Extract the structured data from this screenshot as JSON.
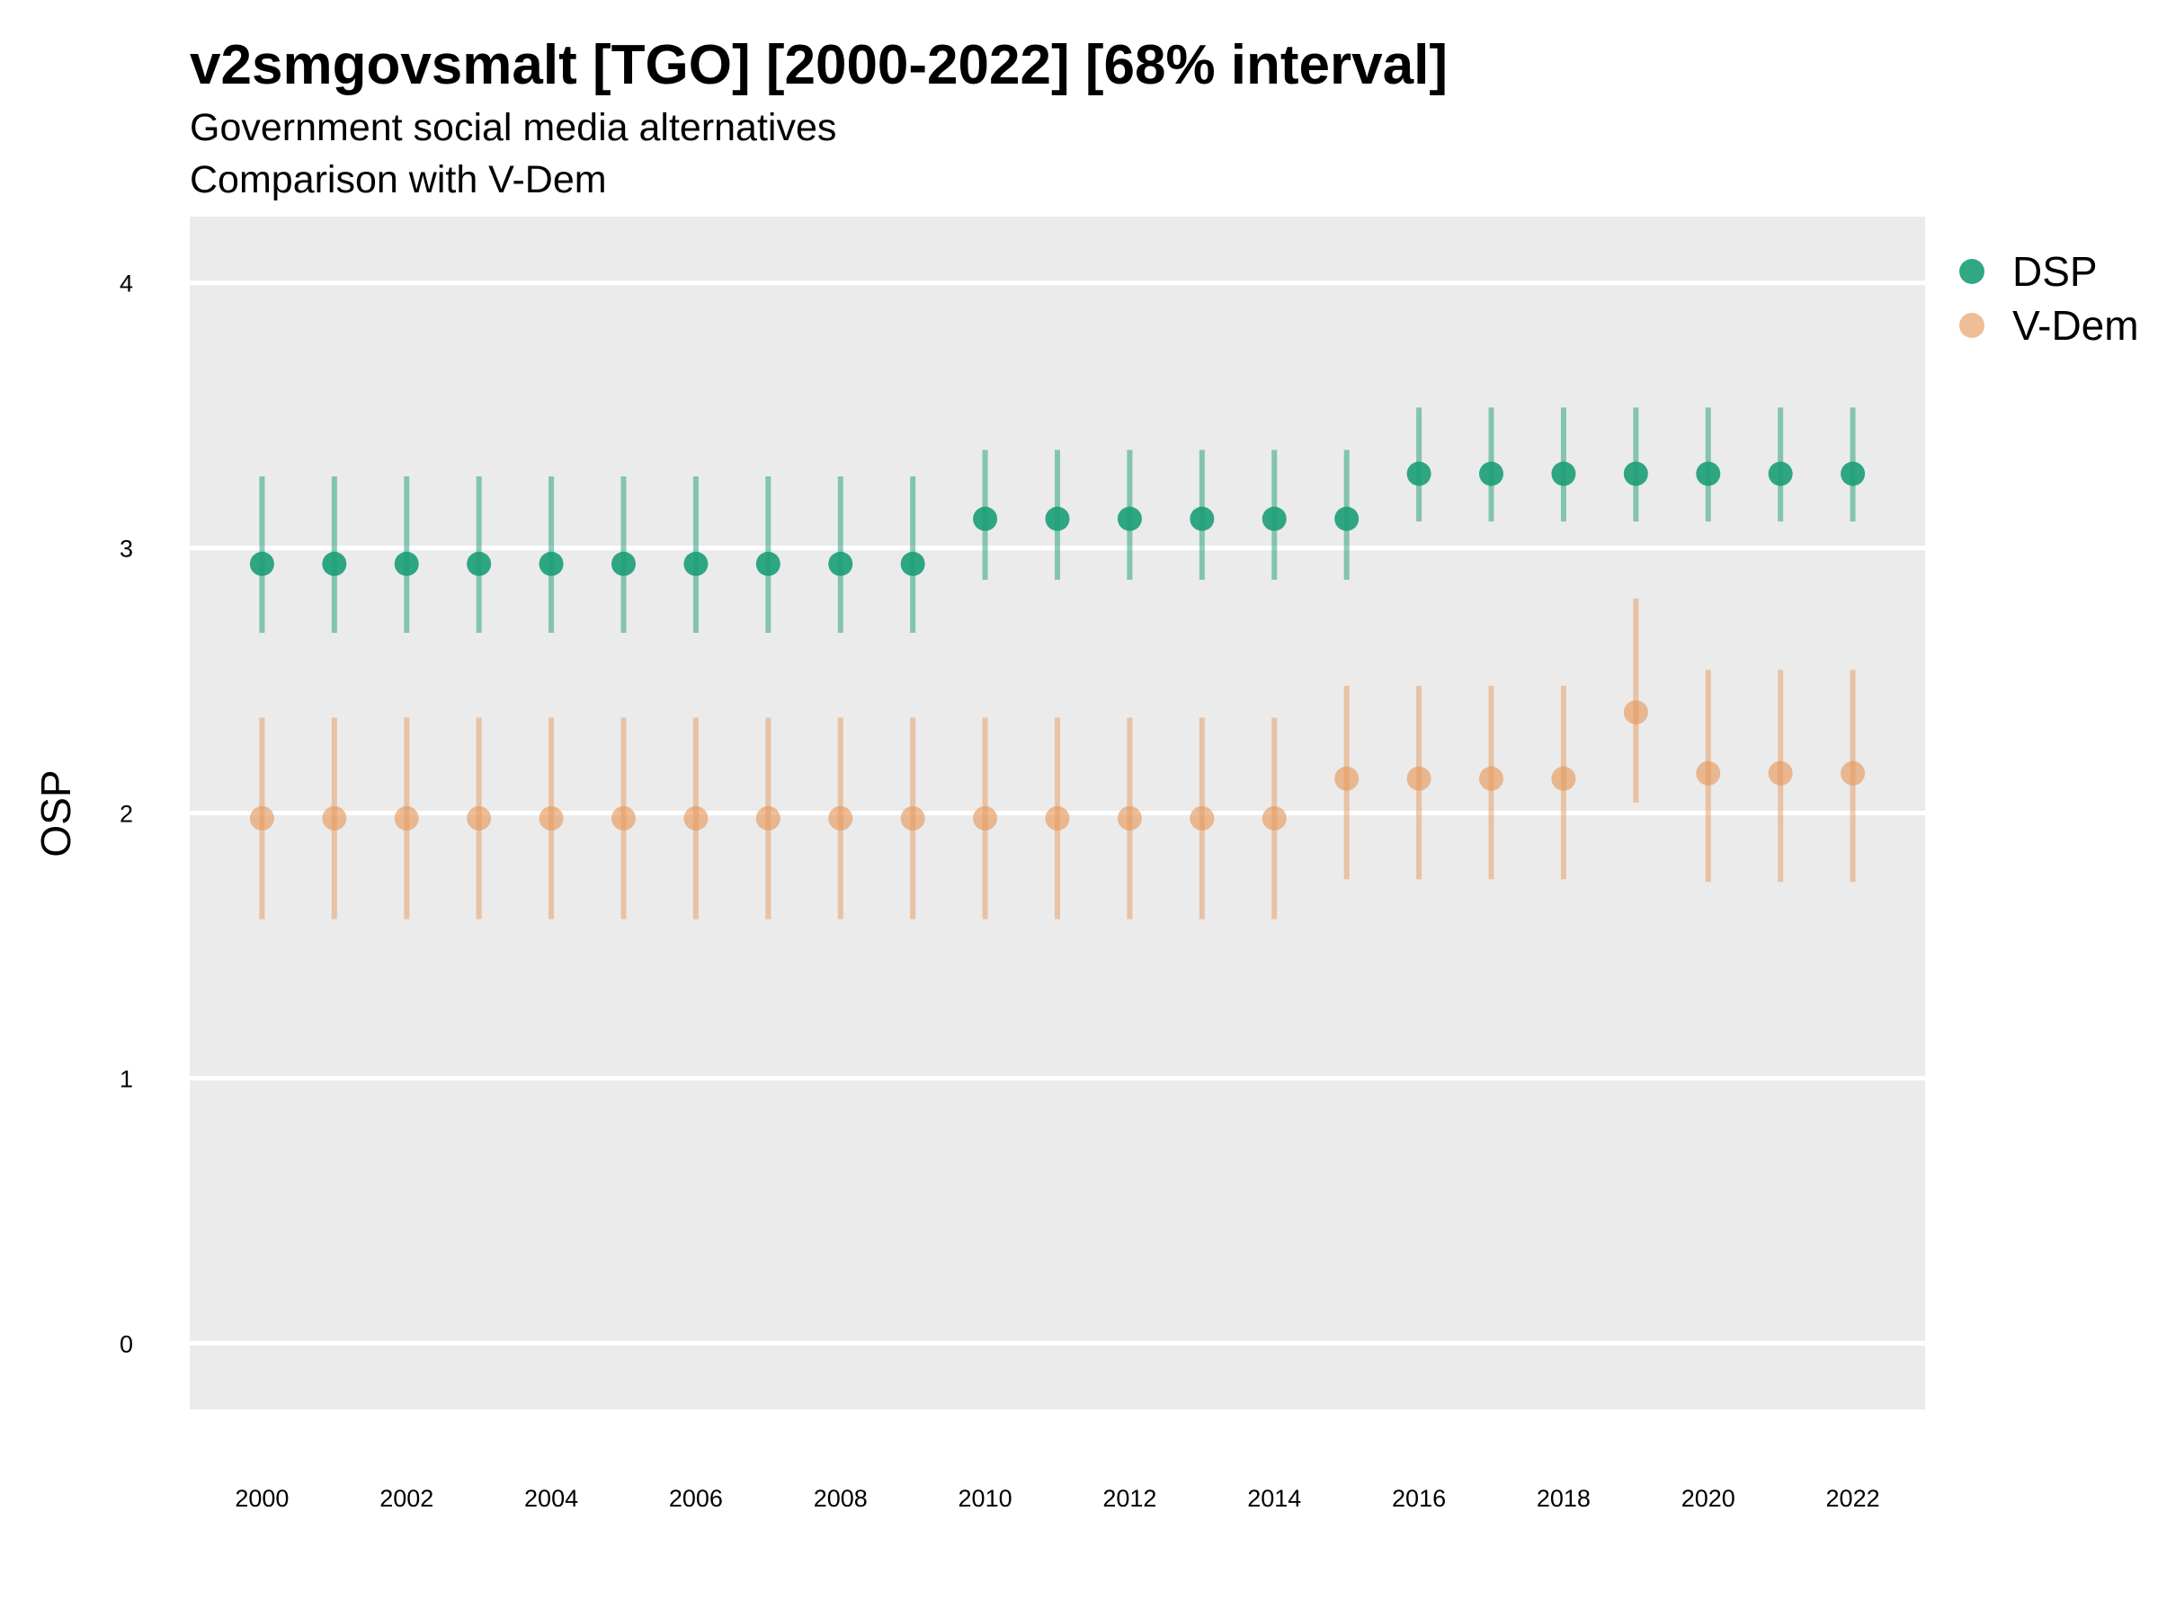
{
  "chart_data": {
    "type": "scatter",
    "title": "v2smgovsmalt [TGO] [2000-2022] [68% interval]",
    "subtitle": "Government social media alternatives",
    "subtitle2": "Comparison with V-Dem",
    "xlabel": "",
    "ylabel": "OSP",
    "ylim": [
      -0.25,
      4.25
    ],
    "xlim": [
      1999,
      2023
    ],
    "y_ticks": [
      0,
      1,
      2,
      3,
      4
    ],
    "x_ticks": [
      2000,
      2002,
      2004,
      2006,
      2008,
      2010,
      2012,
      2014,
      2016,
      2018,
      2020,
      2022
    ],
    "grid": true,
    "legend_position": "right",
    "x": [
      2000,
      2001,
      2002,
      2003,
      2004,
      2005,
      2006,
      2007,
      2008,
      2009,
      2010,
      2011,
      2012,
      2013,
      2014,
      2015,
      2016,
      2017,
      2018,
      2019,
      2020,
      2021,
      2022
    ],
    "series": [
      {
        "name": "DSP",
        "color": "#1b9e77",
        "values": [
          2.94,
          2.94,
          2.94,
          2.94,
          2.94,
          2.94,
          2.94,
          2.94,
          2.94,
          2.94,
          3.11,
          3.11,
          3.11,
          3.11,
          3.11,
          3.11,
          3.28,
          3.28,
          3.28,
          3.28,
          3.28,
          3.28,
          3.28
        ],
        "lower": [
          2.68,
          2.68,
          2.68,
          2.68,
          2.68,
          2.68,
          2.68,
          2.68,
          2.68,
          2.68,
          2.88,
          2.88,
          2.88,
          2.88,
          2.88,
          2.88,
          3.1,
          3.1,
          3.1,
          3.1,
          3.1,
          3.1,
          3.1
        ],
        "upper": [
          3.27,
          3.27,
          3.27,
          3.27,
          3.27,
          3.27,
          3.27,
          3.27,
          3.27,
          3.27,
          3.37,
          3.37,
          3.37,
          3.37,
          3.37,
          3.37,
          3.53,
          3.53,
          3.53,
          3.53,
          3.53,
          3.53,
          3.53
        ]
      },
      {
        "name": "V-Dem",
        "color": "#e69a5e",
        "values": [
          1.98,
          1.98,
          1.98,
          1.98,
          1.98,
          1.98,
          1.98,
          1.98,
          1.98,
          1.98,
          1.98,
          1.98,
          1.98,
          1.98,
          1.98,
          2.13,
          2.13,
          2.13,
          2.13,
          2.38,
          2.15,
          2.15,
          2.15
        ],
        "lower": [
          1.6,
          1.6,
          1.6,
          1.6,
          1.6,
          1.6,
          1.6,
          1.6,
          1.6,
          1.6,
          1.6,
          1.6,
          1.6,
          1.6,
          1.6,
          1.75,
          1.75,
          1.75,
          1.75,
          2.04,
          1.74,
          1.74,
          1.74
        ],
        "upper": [
          2.36,
          2.36,
          2.36,
          2.36,
          2.36,
          2.36,
          2.36,
          2.36,
          2.36,
          2.36,
          2.36,
          2.36,
          2.36,
          2.36,
          2.36,
          2.48,
          2.48,
          2.48,
          2.48,
          2.81,
          2.54,
          2.54,
          2.54
        ]
      }
    ]
  }
}
